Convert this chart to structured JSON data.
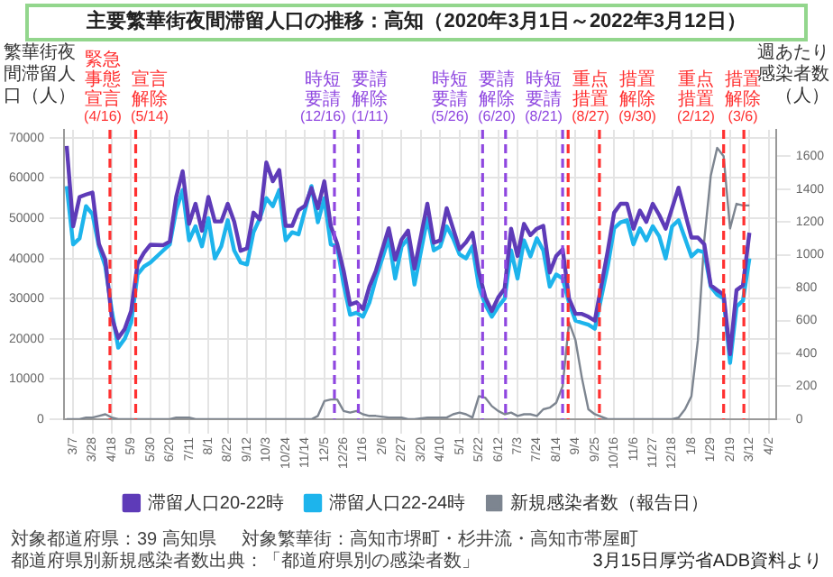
{
  "chart_data": {
    "type": "line",
    "title": "主要繁華街夜間滞留人口の推移：高知（2020年3月1日～2022年3月12日）",
    "ylabel": "繁華街夜間滞留人口（人）",
    "y2label": "週あたり感染者数（人）",
    "x": [
      "2020-02-29",
      "2020-03-07",
      "2020-03-14",
      "2020-03-21",
      "2020-03-28",
      "2020-04-04",
      "2020-04-11",
      "2020-04-18",
      "2020-04-25",
      "2020-05-02",
      "2020-05-09",
      "2020-05-16",
      "2020-05-23",
      "2020-05-30",
      "2020-06-13",
      "2020-06-20",
      "2020-06-27",
      "2020-07-04",
      "2020-07-11",
      "2020-07-18",
      "2020-07-25",
      "2020-08-01",
      "2020-08-08",
      "2020-08-15",
      "2020-08-22",
      "2020-08-29",
      "2020-09-05",
      "2020-09-12",
      "2020-09-19",
      "2020-09-26",
      "2020-10-03",
      "2020-10-10",
      "2020-10-17",
      "2020-10-24",
      "2020-10-31",
      "2020-11-07",
      "2020-11-14",
      "2020-11-21",
      "2020-11-28",
      "2020-12-05",
      "2020-12-12",
      "2020-12-19",
      "2020-12-26",
      "2021-01-02",
      "2021-01-09",
      "2021-01-16",
      "2021-01-23",
      "2021-01-30",
      "2021-02-13",
      "2021-02-20",
      "2021-02-27",
      "2021-03-06",
      "2021-03-13",
      "2021-03-27",
      "2021-04-03",
      "2021-04-10",
      "2021-04-17",
      "2021-04-24",
      "2021-05-01",
      "2021-05-08",
      "2021-05-15",
      "2021-05-22",
      "2021-05-29",
      "2021-06-05",
      "2021-06-12",
      "2021-06-19",
      "2021-06-26",
      "2021-07-03",
      "2021-07-10",
      "2021-07-17",
      "2021-07-24",
      "2021-07-31",
      "2021-08-07",
      "2021-08-14",
      "2021-08-21",
      "2021-08-28",
      "2021-09-04",
      "2021-09-11",
      "2021-09-18",
      "2021-09-25",
      "2021-10-09",
      "2021-10-16",
      "2021-10-23",
      "2021-10-30",
      "2021-11-06",
      "2021-11-13",
      "2021-11-20",
      "2021-11-27",
      "2021-12-04",
      "2021-12-11",
      "2021-12-18",
      "2021-12-25",
      "2022-01-01",
      "2022-01-08",
      "2022-01-15",
      "2022-01-22",
      "2022-01-29",
      "2022-02-05",
      "2022-02-12",
      "2022-02-19",
      "2022-02-26",
      "2022-03-05",
      "2022-03-12"
    ],
    "series": [
      {
        "name": "滞留人口20-22時",
        "color": "#5e3bb8",
        "values": [
          68000,
          48000,
          55300,
          55900,
          56400,
          43600,
          39700,
          25200,
          20200,
          22400,
          26900,
          38600,
          41400,
          43400,
          43300,
          44200,
          55300,
          61700,
          48600,
          53600,
          46900,
          55300,
          49200,
          49200,
          53600,
          49200,
          41900,
          42500,
          51400,
          49700,
          63900,
          59200,
          62000,
          48100,
          48100,
          52000,
          53100,
          57500,
          52500,
          59200,
          48100,
          43600,
          36900,
          28500,
          29100,
          27400,
          33000,
          36900,
          47500,
          39700,
          44700,
          46900,
          37500,
          53600,
          43900,
          44500,
          52500,
          47400,
          42300,
          44000,
          46400,
          36500,
          30300,
          26900,
          30300,
          32500,
          47400,
          40600,
          48600,
          45800,
          47400,
          48100,
          36500,
          40600,
          42300,
          30000,
          26200,
          26200,
          25500,
          24500,
          41800,
          51400,
          53600,
          53600,
          47400,
          51900,
          49100,
          53600,
          50800,
          47400,
          52500,
          57600,
          51400,
          45200,
          45200,
          43500,
          33300,
          32100,
          31000,
          16200,
          32100,
          33300,
          46400
        ]
      },
      {
        "name": "滞留人口22-24時",
        "color": "#1db4ec",
        "values": [
          58000,
          43500,
          45000,
          53000,
          51000,
          43000,
          38000,
          27000,
          17800,
          20000,
          24000,
          36000,
          38000,
          39000,
          42000,
          43500,
          52000,
          57000,
          44500,
          48000,
          43000,
          50000,
          40000,
          43000,
          49500,
          42000,
          39000,
          38500,
          46500,
          50000,
          55000,
          53000,
          57000,
          44500,
          46500,
          46000,
          52000,
          58000,
          49000,
          55000,
          43500,
          43000,
          33500,
          26000,
          26500,
          25500,
          29000,
          35000,
          45000,
          35000,
          43000,
          45000,
          33500,
          50000,
          42000,
          43000,
          48000,
          45000,
          41000,
          40000,
          43000,
          33000,
          28500,
          25500,
          28000,
          30000,
          42000,
          35000,
          44500,
          40500,
          45000,
          42000,
          33000,
          36000,
          35000,
          29000,
          24500,
          24000,
          23500,
          22500,
          38000,
          47500,
          49000,
          49500,
          43500,
          47500,
          44500,
          48000,
          45500,
          40000,
          48000,
          49500,
          45000,
          40500,
          42000,
          41500,
          33000,
          31000,
          30000,
          14000,
          28000,
          29500,
          40000
        ]
      },
      {
        "name": "新規感染者数（報告日）",
        "color": "#7d8590",
        "axis": "y2",
        "values": [
          0,
          0,
          0,
          10,
          10,
          20,
          30,
          10,
          0,
          0,
          0,
          0,
          0,
          0,
          0,
          0,
          10,
          10,
          10,
          0,
          0,
          0,
          0,
          0,
          0,
          0,
          0,
          0,
          0,
          0,
          0,
          0,
          0,
          0,
          0,
          0,
          0,
          0,
          20,
          110,
          120,
          120,
          50,
          40,
          50,
          30,
          20,
          20,
          10,
          10,
          10,
          0,
          0,
          10,
          10,
          10,
          10,
          30,
          40,
          30,
          10,
          140,
          130,
          80,
          50,
          30,
          40,
          20,
          30,
          30,
          20,
          60,
          70,
          100,
          200,
          590,
          480,
          250,
          60,
          30,
          0,
          0,
          0,
          0,
          0,
          0,
          0,
          0,
          0,
          0,
          0,
          10,
          60,
          140,
          480,
          1090,
          1480,
          1650,
          1600,
          1160,
          1310,
          1300,
          1300
        ]
      }
    ],
    "xlim": [
      "2020-02-26",
      "2022-04-10"
    ],
    "xticks": [
      {
        "value": "2020-03-07",
        "label": "3/7"
      },
      {
        "value": "2020-03-28",
        "label": "3/28"
      },
      {
        "value": "2020-04-18",
        "label": "4/18"
      },
      {
        "value": "2020-05-09",
        "label": "5/9"
      },
      {
        "value": "2020-05-30",
        "label": "5/30"
      },
      {
        "value": "2020-06-20",
        "label": "6/20"
      },
      {
        "value": "2020-07-11",
        "label": "7/11"
      },
      {
        "value": "2020-08-01",
        "label": "8/1"
      },
      {
        "value": "2020-08-22",
        "label": "8/22"
      },
      {
        "value": "2020-09-12",
        "label": "9/12"
      },
      {
        "value": "2020-10-03",
        "label": "10/3"
      },
      {
        "value": "2020-10-24",
        "label": "10/24"
      },
      {
        "value": "2020-11-14",
        "label": "11/14"
      },
      {
        "value": "2020-12-05",
        "label": "12/5"
      },
      {
        "value": "2020-12-26",
        "label": "12/26"
      },
      {
        "value": "2021-01-16",
        "label": "1/16"
      },
      {
        "value": "2021-02-06",
        "label": "2/6"
      },
      {
        "value": "2021-02-27",
        "label": "2/27"
      },
      {
        "value": "2021-03-20",
        "label": "3/20"
      },
      {
        "value": "2021-04-10",
        "label": "4/10"
      },
      {
        "value": "2021-05-01",
        "label": "5/1"
      },
      {
        "value": "2021-05-22",
        "label": "5/22"
      },
      {
        "value": "2021-06-12",
        "label": "6/12"
      },
      {
        "value": "2021-07-03",
        "label": "7/3"
      },
      {
        "value": "2021-07-24",
        "label": "7/24"
      },
      {
        "value": "2021-08-14",
        "label": "8/14"
      },
      {
        "value": "2021-09-04",
        "label": "9/4"
      },
      {
        "value": "2021-09-25",
        "label": "9/25"
      },
      {
        "value": "2021-10-16",
        "label": "10/16"
      },
      {
        "value": "2021-11-06",
        "label": "11/6"
      },
      {
        "value": "2021-11-27",
        "label": "11/27"
      },
      {
        "value": "2021-12-18",
        "label": "12/18"
      },
      {
        "value": "2022-01-08",
        "label": "1/8"
      },
      {
        "value": "2022-01-29",
        "label": "1/29"
      },
      {
        "value": "2022-02-19",
        "label": "2/19"
      },
      {
        "value": "2022-03-12",
        "label": "3/12"
      },
      {
        "value": "2022-04-02",
        "label": "4/2"
      }
    ],
    "ylim": [
      0,
      72000
    ],
    "yticks": [
      0,
      10000,
      20000,
      30000,
      40000,
      50000,
      60000,
      70000
    ],
    "y2lim": [
      0,
      1760
    ],
    "y2ticks": [
      0,
      200,
      400,
      600,
      800,
      1000,
      1200,
      1400,
      1600
    ],
    "ref_lines": [
      {
        "axis": "x",
        "value": "2020-04-16",
        "label": "緊急事態宣言(4/16)",
        "color": "#ff3030",
        "line_style": "dashed"
      },
      {
        "axis": "x",
        "value": "2020-05-14",
        "label": "宣言解除(5/14)",
        "color": "#ff3030",
        "line_style": "dashed"
      },
      {
        "axis": "x",
        "value": "2020-12-16",
        "label": "時短要請(12/16)",
        "color": "#8f47e0",
        "line_style": "dashed"
      },
      {
        "axis": "x",
        "value": "2021-01-11",
        "label": "要請解除(1/11)",
        "color": "#8f47e0",
        "line_style": "dashed"
      },
      {
        "axis": "x",
        "value": "2021-05-26",
        "label": "時短要請(5/26)",
        "color": "#8f47e0",
        "line_style": "dashed"
      },
      {
        "axis": "x",
        "value": "2021-06-20",
        "label": "要請解除(6/20)",
        "color": "#8f47e0",
        "line_style": "dashed"
      },
      {
        "axis": "x",
        "value": "2021-08-21",
        "label": "時短要請(8/21)",
        "color": "#8f47e0",
        "line_style": "dashed"
      },
      {
        "axis": "x",
        "value": "2021-08-27",
        "label": "重点措置(8/27)",
        "color": "#ff3030",
        "line_style": "dashed"
      },
      {
        "axis": "x",
        "value": "2021-09-30",
        "label": "措置解除(9/30)",
        "color": "#ff3030",
        "line_style": "dashed"
      },
      {
        "axis": "x",
        "value": "2022-02-12",
        "label": "重点措置(2/12)",
        "color": "#ff3030",
        "line_style": "dashed"
      },
      {
        "axis": "x",
        "value": "2022-03-06",
        "label": "措置解除(3/6)",
        "color": "#ff3030",
        "line_style": "dashed"
      }
    ],
    "annotations": [
      "対象都道府県：39 高知県",
      "対象繁華街：高知市堺町・杉井流・高知市帯屋町",
      "都道府県別新規感染者数出典：「都道府県別の感染者数」",
      "3月15日厚労省ADB資料より"
    ],
    "grid": true,
    "legend": "bottom",
    "marker": "none",
    "line_style": "solid"
  }
}
